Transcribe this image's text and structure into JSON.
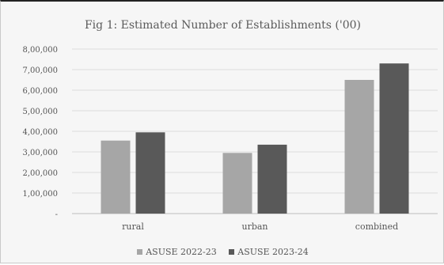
{
  "chart_data": {
    "type": "bar",
    "title": "Fig 1:  Estimated Number of Establishments ('00)",
    "categories": [
      "rural",
      "urban",
      "combined"
    ],
    "series": [
      {
        "name": "ASUSE 2022-23",
        "color": "#a6a6a6",
        "values": [
          355000,
          295000,
          650000
        ]
      },
      {
        "name": "ASUSE 2023-24",
        "color": "#595959",
        "values": [
          395000,
          335000,
          730000
        ]
      }
    ],
    "yticks": [
      0,
      100000,
      200000,
      300000,
      400000,
      500000,
      600000,
      700000,
      800000
    ],
    "ytick_labels": [
      "-",
      "1,00,000",
      "2,00,000",
      "3,00,000",
      "4,00,000",
      "5,00,000",
      "6,00,000",
      "7,00,000",
      "8,00,000"
    ],
    "ylim": [
      0,
      800000
    ],
    "grid": true,
    "legend_position": "bottom",
    "xlabel": "",
    "ylabel": ""
  }
}
